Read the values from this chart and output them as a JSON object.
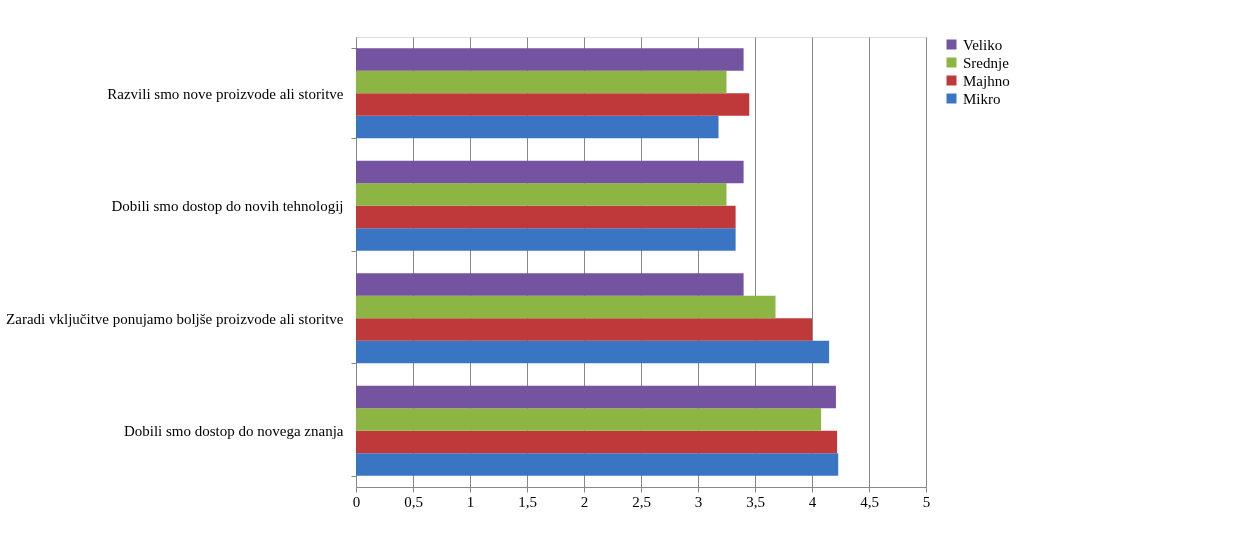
{
  "chart_data": {
    "type": "bar",
    "orientation": "horizontal",
    "categories": [
      "Razvili smo nove proizvode ali storitve",
      "Dobili smo dostop do novih tehnologij",
      "Zaradi vključitve ponujamo boljše proizvode ali storitve",
      "Dobili smo dostop do novega znanja"
    ],
    "series": [
      {
        "name": "Mikro",
        "color": "#3a75c4",
        "values": [
          3.18,
          3.33,
          4.15,
          4.23
        ]
      },
      {
        "name": "Majhno",
        "color": "#c0393a",
        "values": [
          3.45,
          3.33,
          4.0,
          4.22
        ]
      },
      {
        "name": "Srednje",
        "color": "#8db543",
        "values": [
          3.25,
          3.25,
          3.68,
          4.08
        ]
      },
      {
        "name": "Veliko",
        "color": "#7453a0",
        "values": [
          3.4,
          3.4,
          3.4,
          4.21
        ]
      }
    ],
    "xlim": [
      0,
      5
    ],
    "xticks": [
      0,
      {
        "value": 0.5,
        "label": "0,5"
      },
      1,
      {
        "value": 1.5,
        "label": "1,5"
      },
      2,
      {
        "value": 2.5,
        "label": "2,5"
      },
      3,
      {
        "value": 3.5,
        "label": "3,5"
      },
      4,
      {
        "value": 4.5,
        "label": "4,5"
      },
      5
    ],
    "grid": "x",
    "legend": "right"
  }
}
